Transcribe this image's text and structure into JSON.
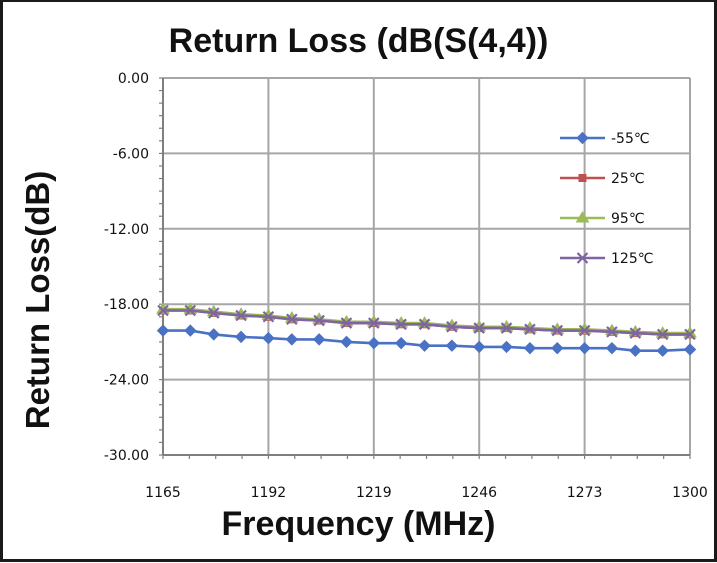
{
  "chart_data": {
    "type": "line",
    "title": "Return Loss (dB(S(4,4))",
    "xlabel": "Frequency (MHz)",
    "ylabel": "Return Loss(dB)",
    "xlim": [
      1165,
      1300
    ],
    "ylim": [
      -30,
      0
    ],
    "x_ticks": [
      "1165",
      "1192",
      "1219",
      "1246",
      "1273",
      "1300"
    ],
    "x_tick_values": [
      1165,
      1192,
      1219,
      1246,
      1273,
      1300
    ],
    "y_ticks": [
      "0.00",
      "-6.00",
      "-12.00",
      "-18.00",
      "-24.00",
      "-30.00"
    ],
    "y_tick_values": [
      0,
      -6,
      -12,
      -18,
      -24,
      -30
    ],
    "grid": true,
    "legend_position": "right, upper-middle",
    "x": [
      1165,
      1172,
      1178,
      1185,
      1192,
      1198,
      1205,
      1212,
      1219,
      1226,
      1232,
      1239,
      1246,
      1253,
      1259,
      1266,
      1273,
      1280,
      1286,
      1293,
      1300
    ],
    "series": [
      {
        "name": "-55℃",
        "color": "#4a72c4",
        "marker": "diamond",
        "values": [
          -20.1,
          -20.1,
          -20.4,
          -20.6,
          -20.7,
          -20.8,
          -20.8,
          -21.0,
          -21.1,
          -21.1,
          -21.3,
          -21.3,
          -21.4,
          -21.4,
          -21.5,
          -21.5,
          -21.5,
          -21.5,
          -21.7,
          -21.7,
          -21.6
        ]
      },
      {
        "name": "25℃",
        "color": "#c0504d",
        "marker": "square",
        "values": [
          -18.5,
          -18.5,
          -18.7,
          -18.9,
          -19.0,
          -19.2,
          -19.3,
          -19.5,
          -19.5,
          -19.6,
          -19.6,
          -19.8,
          -19.9,
          -19.9,
          -20.0,
          -20.1,
          -20.1,
          -20.2,
          -20.3,
          -20.4,
          -20.4
        ]
      },
      {
        "name": "95℃",
        "color": "#9bbb59",
        "marker": "triangle",
        "values": [
          -18.4,
          -18.4,
          -18.6,
          -18.8,
          -18.9,
          -19.1,
          -19.2,
          -19.4,
          -19.4,
          -19.5,
          -19.5,
          -19.7,
          -19.8,
          -19.8,
          -19.9,
          -20.0,
          -20.0,
          -20.1,
          -20.2,
          -20.3,
          -20.3
        ]
      },
      {
        "name": "125℃",
        "color": "#8064a2",
        "marker": "x",
        "values": [
          -18.5,
          -18.5,
          -18.7,
          -18.9,
          -19.0,
          -19.2,
          -19.3,
          -19.5,
          -19.5,
          -19.6,
          -19.6,
          -19.8,
          -19.9,
          -19.9,
          -20.0,
          -20.1,
          -20.1,
          -20.2,
          -20.3,
          -20.4,
          -20.4
        ]
      }
    ]
  }
}
